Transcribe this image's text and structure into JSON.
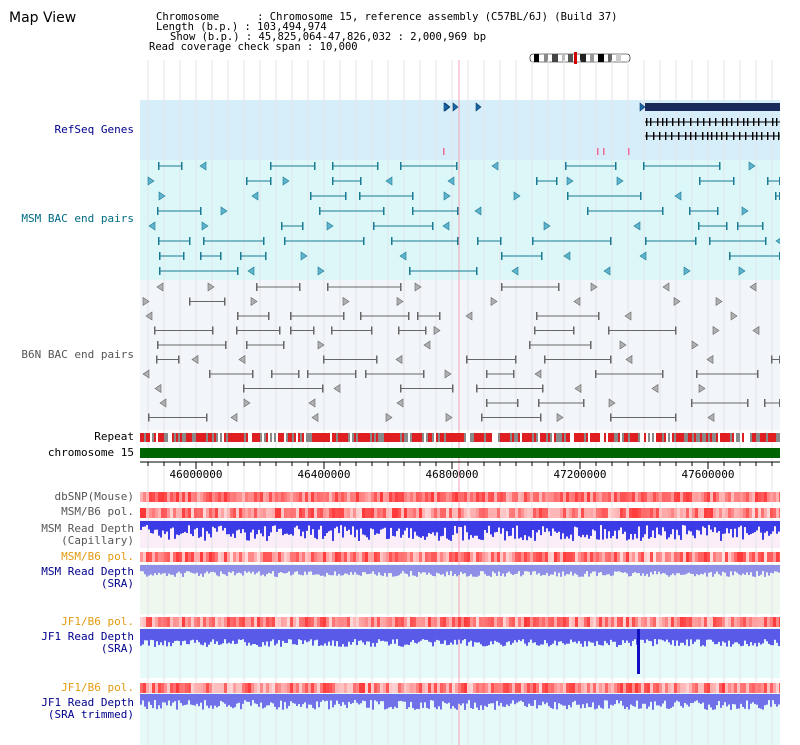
{
  "title": "Map View",
  "info": {
    "chromosome_label": "Chromosome      : Chromosome 15, reference assembly (C57BL/6J) (Build 37)",
    "length_label": "Length (b.p.) : 103,494,974",
    "show_label": "Show (b.p.) : 45,825,064-47,826,032 : 2,000,969 bp",
    "coverage_label": "Read coverage check span : 10,000"
  },
  "tracks": {
    "refseq": "RefSeq Genes",
    "msm_bac": "MSM BAC end pairs",
    "b6n_bac": "B6N BAC end pairs",
    "repeat": "Repeat",
    "chromosome": "chromosome 15",
    "dbsnp": "dbSNP(Mouse)",
    "msm_b6_pol_1": "MSM/B6 pol.",
    "msm_read_depth_cap": "MSM Read Depth\n(Capillary)",
    "msm_b6_pol_2": "MSM/B6 pol.",
    "msm_read_depth_sra": "MSM Read Depth\n(SRA)",
    "jf1_b6_pol_1": "JF1/B6 pol.",
    "jf1_read_depth_sra": "JF1 Read Depth\n(SRA)",
    "jf1_b6_pol_2": "JF1/B6 pol.",
    "jf1_read_depth_trimmed": "JF1 Read Depth\n(SRA trimmed)"
  },
  "axis": {
    "ticks": [
      "46000000",
      "46400000",
      "46800000",
      "47200000",
      "47600000"
    ]
  },
  "colors": {
    "refseq_bg": "#d6eef9",
    "msm_bg": "#dcf7f8",
    "b6n_bg": "#f2f5fa",
    "chromosome": "#006400",
    "navy_label": "#00008b",
    "teal_label": "#006b82",
    "orange_label": "#e39a10",
    "gray_label": "#555555"
  }
}
